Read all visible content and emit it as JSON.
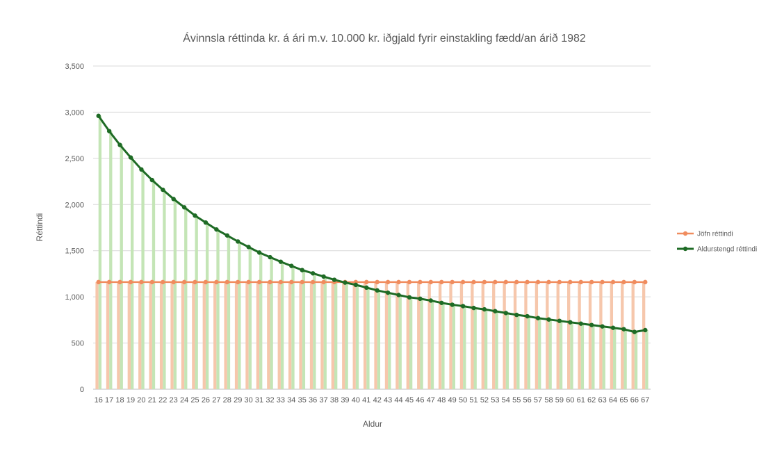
{
  "chart_data": {
    "type": "bar+line",
    "title": "Ávinnsla réttinda kr. á ári m.v. 10.000 kr. iðgjald fyrir einstakling fædd/an árið 1982",
    "xlabel": "Aldur",
    "ylabel": "Réttindi",
    "ylim": [
      0,
      3500
    ],
    "yticks": [
      "0",
      "500",
      "1,000",
      "1,500",
      "2,000",
      "2,500",
      "3,000",
      "3,500"
    ],
    "ytick_values": [
      0,
      500,
      1000,
      1500,
      2000,
      2500,
      3000,
      3500
    ],
    "grid": true,
    "legend_position": "right",
    "categories": [
      "16",
      "17",
      "18",
      "19",
      "20",
      "21",
      "22",
      "23",
      "24",
      "25",
      "26",
      "27",
      "28",
      "29",
      "30",
      "31",
      "32",
      "33",
      "34",
      "35",
      "36",
      "37",
      "38",
      "39",
      "40",
      "41",
      "42",
      "43",
      "44",
      "45",
      "46",
      "47",
      "48",
      "49",
      "50",
      "51",
      "52",
      "53",
      "54",
      "55",
      "56",
      "57",
      "58",
      "59",
      "60",
      "61",
      "62",
      "63",
      "64",
      "65",
      "66",
      "67"
    ],
    "series": [
      {
        "name": "Jöfn réttindi",
        "line_color": "#f08c5e",
        "bar_color": "#f6c7ac",
        "values": [
          1160,
          1160,
          1160,
          1160,
          1160,
          1160,
          1160,
          1160,
          1160,
          1160,
          1160,
          1160,
          1160,
          1160,
          1160,
          1160,
          1160,
          1160,
          1160,
          1160,
          1160,
          1160,
          1160,
          1160,
          1160,
          1160,
          1160,
          1160,
          1160,
          1160,
          1160,
          1160,
          1160,
          1160,
          1160,
          1160,
          1160,
          1160,
          1160,
          1160,
          1160,
          1160,
          1160,
          1160,
          1160,
          1160,
          1160,
          1160,
          1160,
          1160,
          1160,
          1160
        ]
      },
      {
        "name": "Aldurstengd réttindi",
        "line_color": "#1e6b25",
        "bar_color": "#c4e5b6",
        "values": [
          2960,
          2795,
          2645,
          2510,
          2380,
          2265,
          2160,
          2060,
          1970,
          1880,
          1805,
          1730,
          1665,
          1600,
          1540,
          1480,
          1430,
          1380,
          1335,
          1290,
          1255,
          1220,
          1185,
          1155,
          1130,
          1100,
          1070,
          1045,
          1020,
          995,
          980,
          960,
          935,
          915,
          900,
          880,
          865,
          845,
          825,
          805,
          790,
          770,
          755,
          740,
          725,
          710,
          695,
          680,
          665,
          650,
          620,
          640
        ]
      }
    ]
  }
}
